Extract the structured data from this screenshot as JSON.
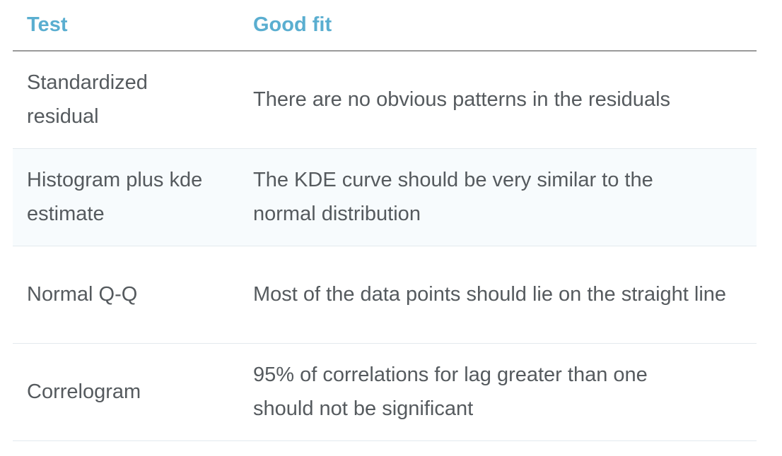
{
  "table": {
    "headers": [
      "Test",
      "Good fit"
    ],
    "rows": [
      {
        "test": "Standardized residual",
        "good_fit": "There are no obvious patterns in the residuals"
      },
      {
        "test": "Histogram plus kde estimate",
        "good_fit": "The KDE curve should be very similar to the normal distribution"
      },
      {
        "test": "Normal Q-Q",
        "good_fit": "Most of the data points should lie on the straight line"
      },
      {
        "test": "Correlogram",
        "good_fit": "95% of correlations for lag greater than one should not be significant"
      }
    ]
  },
  "colors": {
    "header_text": "#5aaed0",
    "body_text": "#555a5e",
    "alt_row_bg": "#f7fbfd",
    "header_rule": "#9a9a9a",
    "row_rule": "#e3eaee"
  }
}
